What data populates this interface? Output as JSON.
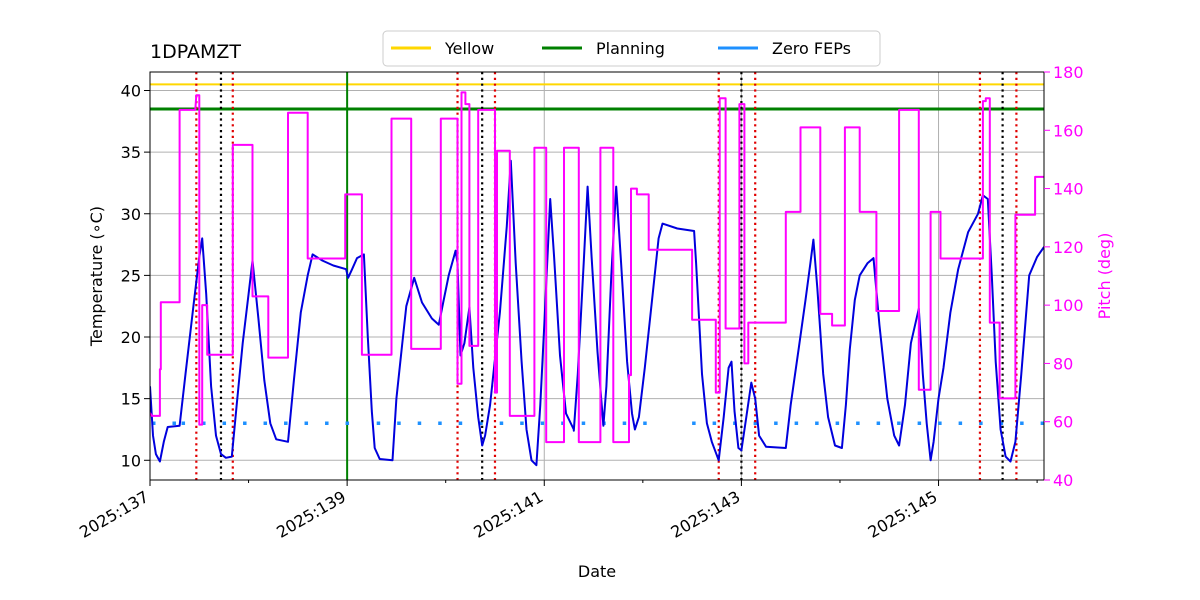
{
  "chart_data": {
    "type": "line",
    "title": "1DPAMZT",
    "xlabel": "Date",
    "ylabel": "Temperature ($^\\circ$C)",
    "ylabel_display": "Temperature (∘C)",
    "y2label": "Pitch (deg)",
    "xlim": [
      137.0,
      146.07
    ],
    "ylim": [
      8.4,
      41.5
    ],
    "y2lim": [
      40,
      180
    ],
    "x_ticks": [
      {
        "value": 137,
        "label": "2025:137"
      },
      {
        "value": 139,
        "label": "2025:139"
      },
      {
        "value": 141,
        "label": "2025:141"
      },
      {
        "value": 143,
        "label": "2025:143"
      },
      {
        "value": 145,
        "label": "2025:145"
      }
    ],
    "x_minor_ticks": [
      138,
      140,
      142,
      144,
      146
    ],
    "y_ticks": [
      10,
      15,
      20,
      25,
      30,
      35,
      40
    ],
    "y2_ticks": [
      40,
      60,
      80,
      100,
      120,
      140,
      160,
      180
    ],
    "grid": true,
    "legend": {
      "placement": "top-center",
      "entries": [
        {
          "label": "Yellow",
          "color": "#ffd700"
        },
        {
          "label": "Planning",
          "color": "#008000"
        },
        {
          "label": "Zero FEPs",
          "color": "#1e90ff"
        }
      ]
    },
    "limits": {
      "yellow": 40.5,
      "planning": 38.5
    },
    "zero_feps_level": 13.0,
    "zero_feps_intervals": [
      [
        137.02,
        137.3
      ],
      [
        137.32,
        139.1
      ],
      [
        139.3,
        142.1
      ],
      [
        142.5,
        146.07
      ]
    ],
    "planning_marker_x": 139.0,
    "red_dotted_x": [
      137.47,
      137.84,
      140.12,
      140.5,
      142.77,
      143.14,
      145.42,
      145.79
    ],
    "black_dotted_x": [
      137.72,
      140.37,
      143.0,
      145.65
    ],
    "series": [
      {
        "name": "1DPAMZT temperature",
        "axis": "left",
        "color": "#0000dd",
        "points": [
          [
            137.0,
            16.0
          ],
          [
            137.03,
            12.0
          ],
          [
            137.06,
            10.5
          ],
          [
            137.1,
            9.9
          ],
          [
            137.14,
            11.5
          ],
          [
            137.18,
            12.7
          ],
          [
            137.3,
            12.8
          ],
          [
            137.36,
            17.0
          ],
          [
            137.44,
            22.5
          ],
          [
            137.5,
            26.5
          ],
          [
            137.53,
            28.0
          ],
          [
            137.57,
            23.5
          ],
          [
            137.62,
            16.0
          ],
          [
            137.67,
            12.0
          ],
          [
            137.72,
            10.5
          ],
          [
            137.77,
            10.2
          ],
          [
            137.83,
            10.3
          ],
          [
            137.88,
            14.5
          ],
          [
            137.94,
            19.5
          ],
          [
            138.0,
            23.5
          ],
          [
            138.04,
            26.2
          ],
          [
            138.1,
            21.5
          ],
          [
            138.16,
            16.5
          ],
          [
            138.22,
            13.0
          ],
          [
            138.28,
            11.7
          ],
          [
            138.4,
            11.5
          ],
          [
            138.46,
            16.5
          ],
          [
            138.53,
            22.0
          ],
          [
            138.6,
            25.0
          ],
          [
            138.65,
            26.7
          ],
          [
            138.75,
            26.2
          ],
          [
            138.86,
            25.8
          ],
          [
            138.99,
            25.5
          ],
          [
            139.01,
            24.8
          ],
          [
            139.05,
            25.5
          ],
          [
            139.1,
            26.4
          ],
          [
            139.17,
            26.7
          ],
          [
            139.21,
            20.0
          ],
          [
            139.25,
            14.0
          ],
          [
            139.28,
            11.0
          ],
          [
            139.33,
            10.1
          ],
          [
            139.46,
            10.0
          ],
          [
            139.5,
            15.0
          ],
          [
            139.56,
            19.5
          ],
          [
            139.6,
            22.5
          ],
          [
            139.68,
            24.8
          ],
          [
            139.76,
            22.8
          ],
          [
            139.86,
            21.5
          ],
          [
            139.93,
            21.0
          ],
          [
            139.98,
            23.0
          ],
          [
            140.03,
            25.0
          ],
          [
            140.1,
            27.0
          ],
          [
            140.12,
            26.0
          ],
          [
            140.15,
            18.5
          ],
          [
            140.19,
            19.5
          ],
          [
            140.24,
            22.4
          ],
          [
            140.28,
            17.5
          ],
          [
            140.33,
            13.5
          ],
          [
            140.37,
            11.2
          ],
          [
            140.4,
            12.0
          ],
          [
            140.45,
            14.5
          ],
          [
            140.55,
            22.0
          ],
          [
            140.62,
            29.0
          ],
          [
            140.66,
            34.3
          ],
          [
            140.71,
            26.0
          ],
          [
            140.77,
            18.0
          ],
          [
            140.82,
            12.5
          ],
          [
            140.87,
            10.0
          ],
          [
            140.92,
            9.6
          ],
          [
            140.96,
            14.5
          ],
          [
            141.0,
            21.0
          ],
          [
            141.06,
            31.2
          ],
          [
            141.1,
            26.5
          ],
          [
            141.16,
            18.5
          ],
          [
            141.22,
            13.8
          ],
          [
            141.3,
            12.5
          ],
          [
            141.3,
            12.4
          ],
          [
            141.34,
            17.0
          ],
          [
            141.4,
            26.0
          ],
          [
            141.44,
            32.2
          ],
          [
            141.48,
            26.5
          ],
          [
            141.54,
            18.8
          ],
          [
            141.58,
            14.8
          ],
          [
            141.6,
            12.8
          ],
          [
            141.63,
            16.0
          ],
          [
            141.68,
            25.0
          ],
          [
            141.73,
            32.2
          ],
          [
            141.78,
            26.0
          ],
          [
            141.84,
            18.0
          ],
          [
            141.89,
            13.8
          ],
          [
            141.92,
            12.5
          ],
          [
            141.96,
            13.5
          ],
          [
            142.02,
            17.5
          ],
          [
            142.1,
            23.5
          ],
          [
            142.16,
            28.0
          ],
          [
            142.2,
            29.2
          ],
          [
            142.35,
            28.8
          ],
          [
            142.52,
            28.6
          ],
          [
            142.54,
            26.0
          ],
          [
            142.6,
            17.0
          ],
          [
            142.65,
            13.0
          ],
          [
            142.7,
            11.5
          ],
          [
            142.77,
            10.0
          ],
          [
            142.82,
            13.5
          ],
          [
            142.87,
            17.5
          ],
          [
            142.9,
            18.0
          ],
          [
            142.93,
            14.0
          ],
          [
            142.97,
            11.0
          ],
          [
            143.0,
            10.8
          ],
          [
            143.05,
            13.5
          ],
          [
            143.1,
            16.3
          ],
          [
            143.14,
            15.0
          ],
          [
            143.18,
            12.0
          ],
          [
            143.25,
            11.1
          ],
          [
            143.45,
            11.0
          ],
          [
            143.5,
            14.5
          ],
          [
            143.58,
            19.0
          ],
          [
            143.65,
            23.0
          ],
          [
            143.7,
            26.0
          ],
          [
            143.73,
            27.9
          ],
          [
            143.77,
            24.0
          ],
          [
            143.83,
            17.0
          ],
          [
            143.88,
            13.5
          ],
          [
            143.95,
            11.2
          ],
          [
            144.02,
            11.0
          ],
          [
            144.06,
            14.5
          ],
          [
            144.1,
            19.0
          ],
          [
            144.15,
            23.0
          ],
          [
            144.2,
            25.0
          ],
          [
            144.28,
            26.0
          ],
          [
            144.34,
            26.4
          ],
          [
            144.4,
            21.0
          ],
          [
            144.48,
            15.0
          ],
          [
            144.55,
            12.0
          ],
          [
            144.6,
            11.2
          ],
          [
            144.66,
            14.5
          ],
          [
            144.72,
            19.5
          ],
          [
            144.8,
            22.3
          ],
          [
            144.84,
            17.0
          ],
          [
            144.88,
            13.0
          ],
          [
            144.92,
            10.0
          ],
          [
            144.95,
            11.5
          ],
          [
            145.0,
            15.0
          ],
          [
            145.05,
            17.5
          ],
          [
            145.12,
            22.0
          ],
          [
            145.2,
            25.5
          ],
          [
            145.3,
            28.5
          ],
          [
            145.4,
            30.0
          ],
          [
            145.45,
            31.5
          ],
          [
            145.5,
            31.2
          ],
          [
            145.54,
            25.0
          ],
          [
            145.58,
            18.0
          ],
          [
            145.63,
            12.5
          ],
          [
            145.68,
            10.3
          ],
          [
            145.73,
            9.9
          ],
          [
            145.78,
            11.5
          ],
          [
            145.84,
            17.0
          ],
          [
            145.92,
            25.0
          ],
          [
            146.0,
            26.5
          ],
          [
            146.07,
            27.3
          ]
        ]
      },
      {
        "name": "Pitch",
        "axis": "right",
        "color": "#ff00ff",
        "points": [
          [
            137.0,
            63
          ],
          [
            137.02,
            62
          ],
          [
            137.1,
            62
          ],
          [
            137.1,
            78
          ],
          [
            137.11,
            78
          ],
          [
            137.11,
            101
          ],
          [
            137.3,
            101
          ],
          [
            137.3,
            167
          ],
          [
            137.46,
            167
          ],
          [
            137.47,
            172
          ],
          [
            137.5,
            172
          ],
          [
            137.5,
            59
          ],
          [
            137.53,
            59
          ],
          [
            137.53,
            100
          ],
          [
            137.58,
            100
          ],
          [
            137.58,
            83
          ],
          [
            137.8,
            83
          ],
          [
            137.8,
            83
          ],
          [
            137.84,
            83
          ],
          [
            137.84,
            155
          ],
          [
            138.04,
            155
          ],
          [
            138.04,
            103
          ],
          [
            138.2,
            103
          ],
          [
            138.2,
            82
          ],
          [
            138.4,
            82
          ],
          [
            138.4,
            166
          ],
          [
            138.6,
            166
          ],
          [
            138.6,
            116
          ],
          [
            138.98,
            116
          ],
          [
            138.98,
            138
          ],
          [
            139.15,
            138
          ],
          [
            139.15,
            83
          ],
          [
            139.45,
            83
          ],
          [
            139.45,
            164
          ],
          [
            139.65,
            164
          ],
          [
            139.65,
            85
          ],
          [
            139.95,
            85
          ],
          [
            139.95,
            164
          ],
          [
            140.1,
            164
          ],
          [
            140.1,
            164
          ],
          [
            140.12,
            164
          ],
          [
            140.12,
            73
          ],
          [
            140.16,
            73
          ],
          [
            140.16,
            173
          ],
          [
            140.2,
            173
          ],
          [
            140.2,
            169
          ],
          [
            140.24,
            169
          ],
          [
            140.24,
            86
          ],
          [
            140.33,
            86
          ],
          [
            140.33,
            167
          ],
          [
            140.5,
            167
          ],
          [
            140.5,
            70
          ],
          [
            140.52,
            70
          ],
          [
            140.52,
            153
          ],
          [
            140.65,
            153
          ],
          [
            140.65,
            62
          ],
          [
            140.9,
            62
          ],
          [
            140.9,
            154
          ],
          [
            141.02,
            154
          ],
          [
            141.02,
            53
          ],
          [
            141.2,
            53
          ],
          [
            141.2,
            154
          ],
          [
            141.35,
            154
          ],
          [
            141.35,
            53
          ],
          [
            141.57,
            53
          ],
          [
            141.57,
            154
          ],
          [
            141.7,
            154
          ],
          [
            141.7,
            53
          ],
          [
            141.86,
            53
          ],
          [
            141.86,
            76
          ],
          [
            141.88,
            76
          ],
          [
            141.88,
            140
          ],
          [
            141.94,
            140
          ],
          [
            141.94,
            138
          ],
          [
            142.06,
            138
          ],
          [
            142.06,
            119
          ],
          [
            142.5,
            119
          ],
          [
            142.5,
            95
          ],
          [
            142.74,
            95
          ],
          [
            142.74,
            70
          ],
          [
            142.78,
            70
          ],
          [
            142.78,
            171
          ],
          [
            142.84,
            171
          ],
          [
            142.84,
            92
          ],
          [
            142.98,
            92
          ],
          [
            142.98,
            169
          ],
          [
            143.03,
            169
          ],
          [
            143.03,
            80
          ],
          [
            143.07,
            80
          ],
          [
            143.07,
            94
          ],
          [
            143.2,
            94
          ],
          [
            143.2,
            94
          ],
          [
            143.45,
            94
          ],
          [
            143.45,
            132
          ],
          [
            143.6,
            132
          ],
          [
            143.6,
            161
          ],
          [
            143.8,
            161
          ],
          [
            143.8,
            97
          ],
          [
            143.92,
            97
          ],
          [
            143.92,
            93
          ],
          [
            144.05,
            93
          ],
          [
            144.05,
            161
          ],
          [
            144.2,
            161
          ],
          [
            144.2,
            132
          ],
          [
            144.37,
            132
          ],
          [
            144.37,
            98
          ],
          [
            144.6,
            98
          ],
          [
            144.6,
            167
          ],
          [
            144.8,
            167
          ],
          [
            144.8,
            71
          ],
          [
            144.92,
            71
          ],
          [
            144.92,
            132
          ],
          [
            145.02,
            132
          ],
          [
            145.02,
            116
          ],
          [
            145.45,
            116
          ],
          [
            145.45,
            170
          ],
          [
            145.48,
            170
          ],
          [
            145.48,
            171
          ],
          [
            145.52,
            171
          ],
          [
            145.52,
            94
          ],
          [
            145.62,
            94
          ],
          [
            145.62,
            68
          ],
          [
            145.78,
            68
          ],
          [
            145.78,
            131
          ],
          [
            145.98,
            131
          ],
          [
            145.98,
            144
          ],
          [
            146.07,
            144
          ]
        ]
      }
    ]
  }
}
